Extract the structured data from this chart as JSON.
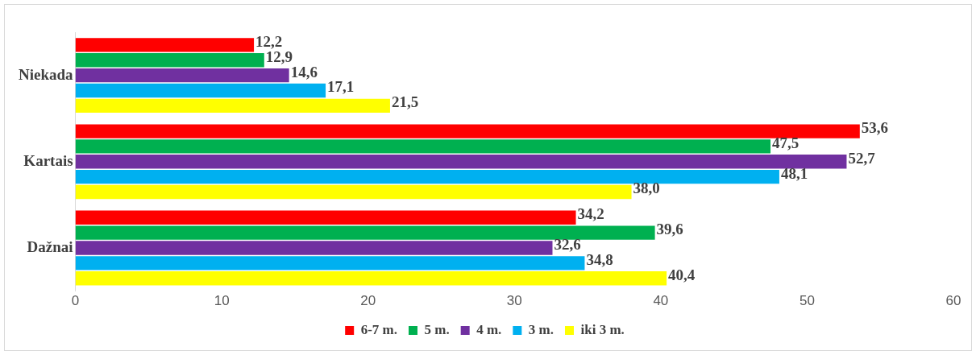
{
  "chart_data": {
    "type": "bar",
    "orientation": "horizontal",
    "categories": [
      "Niekada",
      "Kartais",
      "Dažnai"
    ],
    "series": [
      {
        "name": "6-7 m.",
        "color": "#ff0000",
        "values": [
          12.2,
          53.6,
          34.2
        ],
        "value_labels": [
          "12,2",
          "53,6",
          "34,2"
        ]
      },
      {
        "name": "5 m.",
        "color": "#00b050",
        "values": [
          12.9,
          47.5,
          39.6
        ],
        "value_labels": [
          "12,9",
          "47,5",
          "39,6"
        ]
      },
      {
        "name": "4 m.",
        "color": "#7030a0",
        "values": [
          14.6,
          52.7,
          32.6
        ],
        "value_labels": [
          "14,6",
          "52,7",
          "32,6"
        ]
      },
      {
        "name": "3 m.",
        "color": "#00b0f0",
        "values": [
          17.1,
          48.1,
          34.8
        ],
        "value_labels": [
          "17,1",
          "48,1",
          "34,8"
        ]
      },
      {
        "name": "iki 3 m.",
        "color": "#ffff00",
        "values": [
          21.5,
          38.0,
          40.4
        ],
        "value_labels": [
          "21,5",
          "38,0",
          "40,4"
        ]
      }
    ],
    "xlim": [
      0,
      60
    ],
    "xticks": [
      0,
      10,
      20,
      30,
      40,
      50,
      60
    ],
    "grid": false,
    "legend": "bottom"
  }
}
